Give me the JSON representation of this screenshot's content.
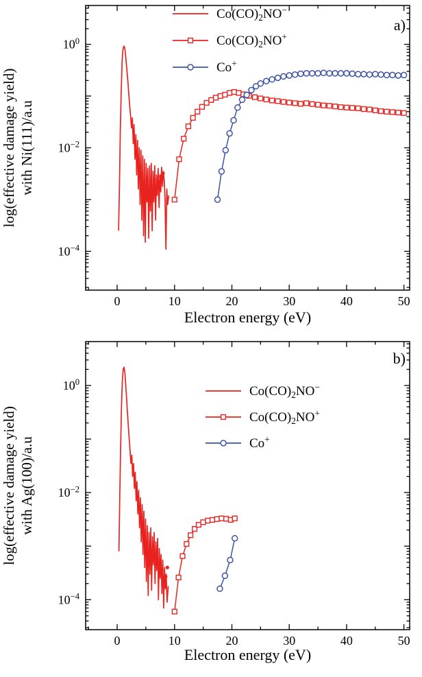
{
  "figure": {
    "background": "#ffffff",
    "colors": {
      "red": "#e8231f",
      "blue": "#3a53a4",
      "axis": "#000000"
    }
  },
  "chart_data": [
    {
      "type": "line",
      "panel_label": "a)",
      "xlabel": "Electron energy (eV)",
      "ylabel_lines": [
        "log(effective damage yield)",
        "with Ni(111)/a.u"
      ],
      "xlim": [
        -5.5,
        51
      ],
      "ylog_lim": [
        -4.75,
        0.75
      ],
      "xticks": [
        0,
        10,
        20,
        30,
        40,
        50
      ],
      "xminor_step": 5,
      "ytick_exponents": [
        0,
        -2,
        -4
      ],
      "grid": false,
      "legend_position": "top-center-inside",
      "legend": [
        {
          "marker": "line",
          "color": "red",
          "label_parts": [
            {
              "t": "Co(CO)"
            },
            {
              "t": "2",
              "s": "sub"
            },
            {
              "t": "NO"
            },
            {
              "t": "−",
              "s": "sup"
            }
          ]
        },
        {
          "marker": "square",
          "color": "red",
          "label_parts": [
            {
              "t": "Co(CO)"
            },
            {
              "t": "2",
              "s": "sub"
            },
            {
              "t": "NO"
            },
            {
              "t": "+",
              "s": "sup"
            }
          ]
        },
        {
          "marker": "circle",
          "color": "blue",
          "label_parts": [
            {
              "t": "Co"
            },
            {
              "t": "+",
              "s": "sup"
            }
          ]
        }
      ],
      "series": [
        {
          "name": "cocO2no-anion",
          "color": "red",
          "marker": "none",
          "points": [
            [
              0.25,
              0.00025
            ],
            [
              0.4,
              0.002
            ],
            [
              0.55,
              0.02
            ],
            [
              0.7,
              0.12
            ],
            [
              0.85,
              0.45
            ],
            [
              1.0,
              0.78
            ],
            [
              1.15,
              0.92
            ],
            [
              1.3,
              0.88
            ],
            [
              1.45,
              0.65
            ],
            [
              1.6,
              0.42
            ],
            [
              1.75,
              0.27
            ],
            [
              1.9,
              0.17
            ],
            [
              2.05,
              0.1
            ],
            [
              2.2,
              0.062
            ],
            [
              2.35,
              0.04
            ],
            [
              2.5,
              0.024
            ],
            [
              2.65,
              0.038
            ],
            [
              2.8,
              0.012
            ],
            [
              2.95,
              0.028
            ],
            [
              3.1,
              0.006
            ],
            [
              3.25,
              0.018
            ],
            [
              3.4,
              0.003
            ],
            [
              3.55,
              0.014
            ],
            [
              3.7,
              0.0016
            ],
            [
              3.85,
              0.01
            ],
            [
              4.0,
              0.0008
            ],
            [
              4.15,
              0.009
            ],
            [
              4.3,
              0.0004
            ],
            [
              4.45,
              0.007
            ],
            [
              4.6,
              0.0002
            ],
            [
              4.75,
              0.006
            ],
            [
              4.9,
              0.00015
            ],
            [
              5.05,
              0.005
            ],
            [
              5.2,
              0.0009
            ],
            [
              5.35,
              0.004
            ],
            [
              5.5,
              0.00018
            ],
            [
              5.65,
              0.0045
            ],
            [
              5.8,
              0.0006
            ],
            [
              5.95,
              0.005
            ],
            [
              6.1,
              0.00025
            ],
            [
              6.25,
              0.0035
            ],
            [
              6.4,
              0.0009
            ],
            [
              6.55,
              0.0045
            ],
            [
              6.7,
              0.0004
            ],
            [
              6.85,
              0.003
            ],
            [
              7.0,
              0.0012
            ],
            [
              7.15,
              0.004
            ],
            [
              7.3,
              0.0007
            ],
            [
              7.45,
              0.003
            ],
            [
              7.6,
              0.0014
            ],
            [
              7.75,
              0.0042
            ],
            [
              7.9,
              0.0018
            ],
            [
              8.05,
              0.0035
            ],
            [
              8.2,
              0.0024
            ],
            [
              8.35,
              0.001
            ],
            [
              8.5,
              0.00011
            ],
            [
              8.65,
              0.0016
            ],
            [
              8.8,
              0.0008
            ],
            [
              9.0,
              0.0012
            ]
          ]
        },
        {
          "name": "cocO2no-cation",
          "color": "red",
          "marker": "square",
          "points": [
            [
              10,
              0.001
            ],
            [
              10.8,
              0.006
            ],
            [
              11.6,
              0.015
            ],
            [
              12.4,
              0.026
            ],
            [
              13.2,
              0.038
            ],
            [
              14,
              0.05
            ],
            [
              14.8,
              0.062
            ],
            [
              15.6,
              0.074
            ],
            [
              16.4,
              0.084
            ],
            [
              17.2,
              0.093
            ],
            [
              18,
              0.1
            ],
            [
              18.8,
              0.106
            ],
            [
              19.6,
              0.115
            ],
            [
              20.4,
              0.12
            ],
            [
              21.2,
              0.115
            ],
            [
              22,
              0.108
            ],
            [
              23,
              0.101
            ],
            [
              24,
              0.095
            ],
            [
              25,
              0.09
            ],
            [
              26,
              0.086
            ],
            [
              27,
              0.082
            ],
            [
              28,
              0.08
            ],
            [
              29,
              0.077
            ],
            [
              30,
              0.075
            ],
            [
              31,
              0.073
            ],
            [
              32,
              0.071
            ],
            [
              33,
              0.073
            ],
            [
              34,
              0.07
            ],
            [
              35,
              0.068
            ],
            [
              36,
              0.066
            ],
            [
              37,
              0.065
            ],
            [
              38,
              0.063
            ],
            [
              39,
              0.061
            ],
            [
              40,
              0.06
            ],
            [
              41,
              0.059
            ],
            [
              42,
              0.058
            ],
            [
              43,
              0.056
            ],
            [
              44,
              0.055
            ],
            [
              45,
              0.053
            ],
            [
              46,
              0.051
            ],
            [
              47,
              0.05
            ],
            [
              48,
              0.049
            ],
            [
              49,
              0.048
            ],
            [
              50,
              0.047
            ]
          ]
        },
        {
          "name": "co-cation",
          "color": "blue",
          "marker": "circle",
          "points": [
            [
              17.5,
              0.001
            ],
            [
              18.2,
              0.0035
            ],
            [
              18.9,
              0.009
            ],
            [
              19.6,
              0.019
            ],
            [
              20.3,
              0.034
            ],
            [
              21,
              0.06
            ],
            [
              21.8,
              0.085
            ],
            [
              22.6,
              0.105
            ],
            [
              23.4,
              0.13
            ],
            [
              24.2,
              0.155
            ],
            [
              25,
              0.175
            ],
            [
              26,
              0.195
            ],
            [
              27,
              0.21
            ],
            [
              28,
              0.225
            ],
            [
              29,
              0.24
            ],
            [
              30,
              0.25
            ],
            [
              31,
              0.26
            ],
            [
              32,
              0.27
            ],
            [
              33,
              0.275
            ],
            [
              34,
              0.275
            ],
            [
              35,
              0.275
            ],
            [
              36,
              0.28
            ],
            [
              37,
              0.275
            ],
            [
              38,
              0.275
            ],
            [
              39,
              0.275
            ],
            [
              40,
              0.275
            ],
            [
              41,
              0.27
            ],
            [
              42,
              0.265
            ],
            [
              43,
              0.265
            ],
            [
              44,
              0.26
            ],
            [
              45,
              0.265
            ],
            [
              46,
              0.26
            ],
            [
              47,
              0.255
            ],
            [
              48,
              0.255
            ],
            [
              49,
              0.25
            ],
            [
              50,
              0.255
            ]
          ]
        },
        {
          "name": "isolated-points",
          "color": "red",
          "marker": "dot",
          "points": [
            [
              7.2,
              0.0022
            ],
            [
              7.6,
              0.0028
            ],
            [
              8.0,
              0.0032
            ]
          ]
        }
      ]
    },
    {
      "type": "line",
      "panel_label": "b)",
      "xlabel": "Electron energy (eV)",
      "ylabel_lines": [
        "log(effective damage yield)",
        "with Ag(100)/a.u"
      ],
      "xlim": [
        -5.5,
        51
      ],
      "ylog_lim": [
        -4.56,
        0.82
      ],
      "xticks": [
        0,
        10,
        20,
        30,
        40,
        50
      ],
      "xminor_step": 5,
      "ytick_exponents": [
        0,
        -2,
        -4
      ],
      "grid": false,
      "legend_position": "upper-right-inside",
      "legend": [
        {
          "marker": "line",
          "color": "red",
          "label_parts": [
            {
              "t": "Co(CO)"
            },
            {
              "t": "2",
              "s": "sub"
            },
            {
              "t": "NO"
            },
            {
              "t": "−",
              "s": "sup"
            }
          ]
        },
        {
          "marker": "square",
          "color": "red",
          "label_parts": [
            {
              "t": "Co(CO)"
            },
            {
              "t": "2",
              "s": "sub"
            },
            {
              "t": "NO"
            },
            {
              "t": "+",
              "s": "sup"
            }
          ]
        },
        {
          "marker": "circle",
          "color": "blue",
          "label_parts": [
            {
              "t": "Co"
            },
            {
              "t": "+",
              "s": "sup"
            }
          ]
        }
      ],
      "series": [
        {
          "name": "cocO2no-anion",
          "color": "red",
          "marker": "none",
          "points": [
            [
              0.3,
              0.0008
            ],
            [
              0.45,
              0.008
            ],
            [
              0.6,
              0.07
            ],
            [
              0.75,
              0.4
            ],
            [
              0.9,
              1.2
            ],
            [
              1.05,
              2.0
            ],
            [
              1.2,
              2.2
            ],
            [
              1.35,
              1.7
            ],
            [
              1.5,
              1.0
            ],
            [
              1.65,
              0.55
            ],
            [
              1.8,
              0.3
            ],
            [
              1.95,
              0.17
            ],
            [
              2.1,
              0.1
            ],
            [
              2.25,
              0.06
            ],
            [
              2.4,
              0.035
            ],
            [
              2.55,
              0.05
            ],
            [
              2.7,
              0.02
            ],
            [
              2.85,
              0.035
            ],
            [
              3.0,
              0.012
            ],
            [
              3.15,
              0.024
            ],
            [
              3.3,
              0.007
            ],
            [
              3.45,
              0.016
            ],
            [
              3.6,
              0.004
            ],
            [
              3.75,
              0.011
            ],
            [
              3.9,
              0.0022
            ],
            [
              4.05,
              0.008
            ],
            [
              4.2,
              0.0012
            ],
            [
              4.35,
              0.006
            ],
            [
              4.5,
              0.0007
            ],
            [
              4.65,
              0.0045
            ],
            [
              4.8,
              0.0004
            ],
            [
              4.95,
              0.0032
            ],
            [
              5.1,
              0.00022
            ],
            [
              5.25,
              0.0024
            ],
            [
              5.4,
              0.00012
            ],
            [
              5.55,
              0.0018
            ],
            [
              5.7,
              0.0003
            ],
            [
              5.85,
              0.0022
            ],
            [
              6.0,
              0.00015
            ],
            [
              6.15,
              0.0015
            ],
            [
              6.3,
              0.00045
            ],
            [
              6.45,
              0.0018
            ],
            [
              6.6,
              0.0002
            ],
            [
              6.75,
              0.0012
            ],
            [
              6.9,
              0.00035
            ],
            [
              7.05,
              0.0014
            ],
            [
              7.2,
              0.0001
            ],
            [
              7.35,
              0.0009
            ],
            [
              7.5,
              0.00025
            ],
            [
              7.65,
              0.0007
            ],
            [
              7.8,
              0.00013
            ],
            [
              7.95,
              0.00055
            ],
            [
              8.1,
              7e-05
            ],
            [
              8.25,
              0.0004
            ],
            [
              8.4,
              0.00016
            ],
            [
              8.55,
              0.0003
            ],
            [
              8.7,
              9e-05
            ],
            [
              8.9,
              0.00018
            ]
          ]
        },
        {
          "name": "cocO2no-cation",
          "color": "red",
          "marker": "square",
          "points": [
            [
              10,
              6e-05
            ],
            [
              10.7,
              0.00026
            ],
            [
              11.4,
              0.00065
            ],
            [
              12.1,
              0.0011
            ],
            [
              12.8,
              0.0016
            ],
            [
              13.5,
              0.0021
            ],
            [
              14.2,
              0.0025
            ],
            [
              15,
              0.0028
            ],
            [
              15.8,
              0.003
            ],
            [
              16.6,
              0.0031
            ],
            [
              17.4,
              0.0032
            ],
            [
              18.2,
              0.0033
            ],
            [
              19,
              0.00325
            ],
            [
              19.8,
              0.0031
            ],
            [
              20.5,
              0.0033
            ]
          ]
        },
        {
          "name": "co-cation",
          "color": "blue",
          "marker": "circle",
          "points": [
            [
              17.9,
              0.00016
            ],
            [
              18.8,
              0.00028
            ],
            [
              19.7,
              0.00055
            ],
            [
              20.5,
              0.0014
            ]
          ]
        },
        {
          "name": "isolated-points",
          "color": "red",
          "marker": "dot",
          "points": [
            [
              8.15,
              0.00019
            ],
            [
              8.45,
              0.00027
            ],
            [
              8.75,
              0.0004
            ]
          ]
        }
      ]
    }
  ]
}
